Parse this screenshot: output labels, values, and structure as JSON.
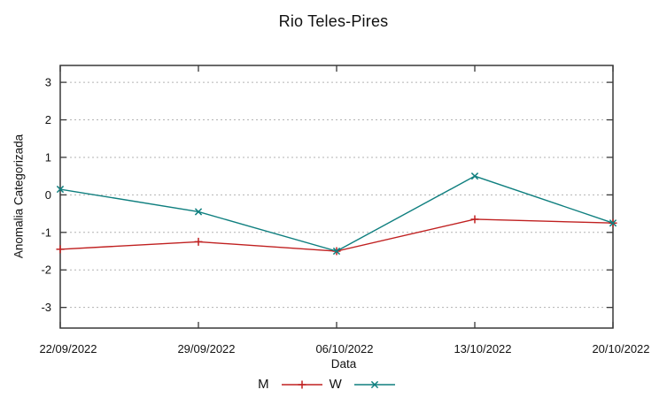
{
  "title": "Rio Teles-Pires",
  "chart_data": {
    "type": "line",
    "title": "Rio Teles-Pires",
    "xlabel": "Data",
    "ylabel": "Anomalia Categorizada",
    "categories": [
      "22/09/2022",
      "29/09/2022",
      "06/10/2022",
      "13/10/2022",
      "20/10/2022"
    ],
    "series": [
      {
        "name": "M",
        "color": "#c02020",
        "marker": "plus",
        "values": [
          -1.45,
          -1.25,
          -1.5,
          -0.65,
          -0.75
        ]
      },
      {
        "name": "W",
        "color": "#0f7f7f",
        "marker": "cross",
        "values": [
          0.15,
          -0.45,
          -1.5,
          0.5,
          -0.75
        ]
      }
    ],
    "y_ticks": [
      -3,
      -2,
      -1,
      0,
      1,
      2,
      3
    ],
    "ylim": [
      -3.55,
      3.45
    ],
    "grid": "horizontal-dotted",
    "legend_position": "bottom-center",
    "colors": {
      "grid": "#b3b3b3",
      "border": "#383838",
      "text": "#111111",
      "background": "#ffffff"
    }
  }
}
